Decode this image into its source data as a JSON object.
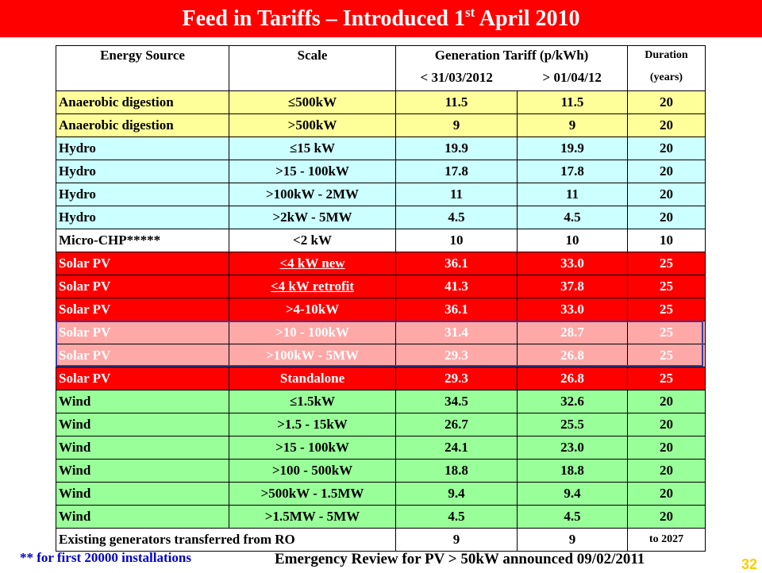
{
  "title": {
    "main": "Feed in Tariffs – Introduced 1",
    "sup": "st",
    "rest": " April 2010"
  },
  "table": {
    "headers": {
      "source": "Energy Source",
      "scale": "Scale",
      "tariff": "Generation Tariff (p/kWh)",
      "before": "< 31/03/2012",
      "after": "> 01/04/12",
      "duration": "Duration",
      "duration_unit": "(years)"
    },
    "rows": [
      {
        "source": "Anaerobic digestion",
        "scale": "≤500kW",
        "before": "11.5",
        "after": "11.5",
        "duration": "20",
        "group": "yellow"
      },
      {
        "source": "Anaerobic digestion",
        "scale": ">500kW",
        "before": "9",
        "after": "9",
        "duration": "20",
        "group": "yellow"
      },
      {
        "source": "Hydro",
        "scale": "≤15 kW",
        "before": "19.9",
        "after": "19.9",
        "duration": "20",
        "group": "cyan"
      },
      {
        "source": "Hydro",
        "scale": ">15 - 100kW",
        "before": "17.8",
        "after": "17.8",
        "duration": "20",
        "group": "cyan"
      },
      {
        "source": "Hydro",
        "scale": ">100kW - 2MW",
        "before": "11",
        "after": "11",
        "duration": "20",
        "group": "cyan"
      },
      {
        "source": "Hydro",
        "scale": ">2kW - 5MW",
        "before": "4.5",
        "after": "4.5",
        "duration": "20",
        "group": "cyan"
      },
      {
        "source": "Micro-CHP*****",
        "scale": "<2 kW",
        "before": "10",
        "after": "10",
        "duration": "10",
        "group": "white"
      },
      {
        "source": "Solar PV",
        "scale": "<4 kW new",
        "before": "36.1",
        "after": "33.0",
        "duration": "25",
        "group": "red",
        "underline": true
      },
      {
        "source": "Solar PV",
        "scale": "<4 kW retrofit",
        "before": "41.3",
        "after": "37.8",
        "duration": "25",
        "group": "red",
        "underline": true
      },
      {
        "source": "Solar PV",
        "scale": ">4-10kW",
        "before": "36.1",
        "after": "33.0",
        "duration": "25",
        "group": "red"
      },
      {
        "source": "Solar PV",
        "scale": ">10 - 100kW",
        "before": "31.4",
        "after": "28.7",
        "duration": "25",
        "group": "pink"
      },
      {
        "source": "Solar PV",
        "scale": ">100kW - 5MW",
        "before": "29.3",
        "after": "26.8",
        "duration": "25",
        "group": "pink"
      },
      {
        "source": "Solar PV",
        "scale": "Standalone",
        "before": "29.3",
        "after": "26.8",
        "duration": "25",
        "group": "red"
      },
      {
        "source": "Wind",
        "scale": "≤1.5kW",
        "before": "34.5",
        "after": "32.6",
        "duration": "20",
        "group": "green"
      },
      {
        "source": "Wind",
        "scale": ">1.5 - 15kW",
        "before": "26.7",
        "after": "25.5",
        "duration": "20",
        "group": "green"
      },
      {
        "source": "Wind",
        "scale": ">15 - 100kW",
        "before": "24.1",
        "after": "23.0",
        "duration": "20",
        "group": "green"
      },
      {
        "source": "Wind",
        "scale": ">100 - 500kW",
        "before": "18.8",
        "after": "18.8",
        "duration": "20",
        "group": "green"
      },
      {
        "source": "Wind",
        "scale": ">500kW - 1.5MW",
        "before": "9.4",
        "after": "9.4",
        "duration": "20",
        "group": "green"
      },
      {
        "source": "Wind",
        "scale": ">1.5MW - 5MW",
        "before": "4.5",
        "after": "4.5",
        "duration": "20",
        "group": "green"
      }
    ],
    "footer_row": {
      "label": "Existing generators transferred from RO",
      "before": "9",
      "after": "9",
      "duration": "to 2027"
    }
  },
  "notes": {
    "left": "** for first 20000 installations",
    "right": "Emergency Review for PV > 50kW announced 09/02/2011"
  },
  "slide_number": "32",
  "colors": {
    "banner": "#ff0000",
    "anaerobic": "#ffff99",
    "hydro": "#ccffff",
    "solar": "#ff0000",
    "solar_review": "#ffa8a8",
    "wind": "#99ff99",
    "note": "#0000cc",
    "slide_number": "#ffcc00"
  }
}
